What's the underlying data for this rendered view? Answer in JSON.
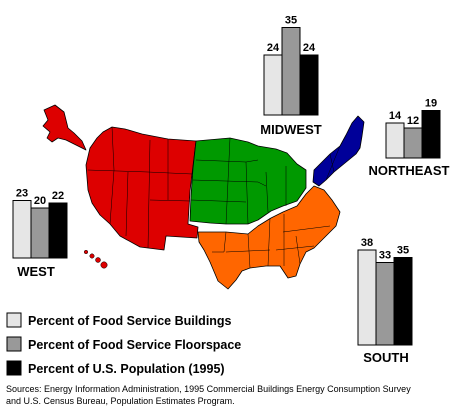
{
  "chart_data": {
    "type": "bar",
    "series": [
      {
        "name": "Percent of Food Service Buildings",
        "color": "#e6e6e6"
      },
      {
        "name": "Percent of Food Service Floorspace",
        "color": "#999999"
      },
      {
        "name": "Percent of U.S. Population (1995)",
        "color": "#000000"
      }
    ],
    "regions": [
      {
        "name": "WEST",
        "values": [
          23,
          20,
          22
        ],
        "color": "#dd0000"
      },
      {
        "name": "MIDWEST",
        "values": [
          24,
          35,
          24
        ],
        "color": "#009900"
      },
      {
        "name": "NORTHEAST",
        "values": [
          14,
          12,
          19
        ],
        "color": "#000099"
      },
      {
        "name": "SOUTH",
        "values": [
          38,
          33,
          35
        ],
        "color": "#ff6600"
      }
    ]
  },
  "sources": {
    "line1": "Sources:  Energy Information Administration, 1995 Commercial Buildings Energy Consumption Survey",
    "line2": "and U.S. Census Bureau, Population Estimates Program."
  }
}
